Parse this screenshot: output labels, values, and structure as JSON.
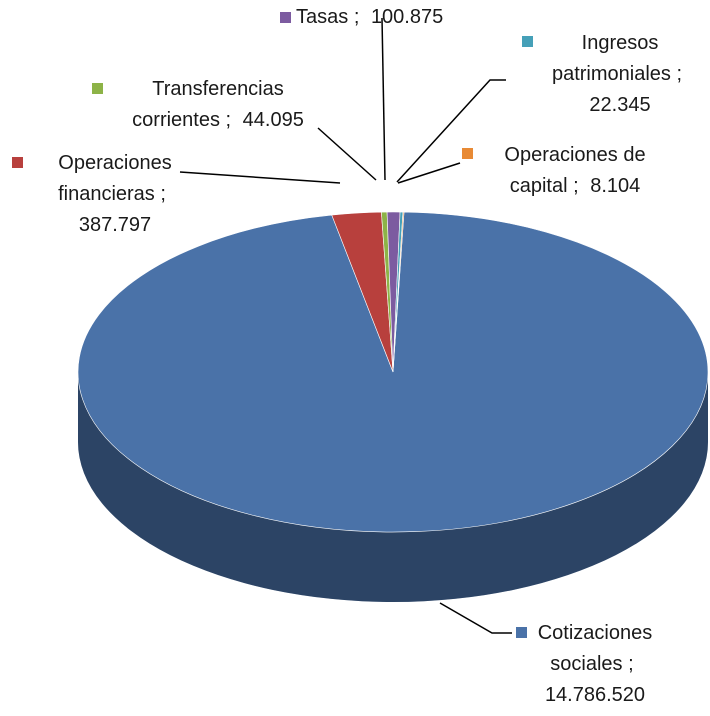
{
  "chart_data": {
    "type": "pie",
    "categories": [
      "Cotizaciones sociales",
      "Operaciones financieras",
      "Transferencias corrientes",
      "Tasas",
      "Ingresos patrimoniales",
      "Operaciones de capital"
    ],
    "values": [
      14786520,
      387797,
      44095,
      100875,
      22345,
      8104
    ],
    "value_labels": [
      "14.786.520",
      "387.797",
      "44.095",
      "100.875",
      "22.345",
      "8.104"
    ],
    "label_separator": ";",
    "colors": [
      "#4a72a8",
      "#b8403d",
      "#8db347",
      "#7c5ba0",
      "#45a0b8",
      "#e88a35"
    ]
  }
}
